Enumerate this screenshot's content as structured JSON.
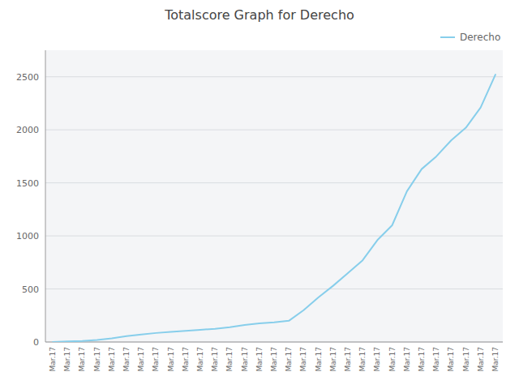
{
  "chart_data": {
    "type": "line",
    "title": "Totalscore Graph for Derecho",
    "categories": [
      "Mar.17",
      "Mar.17",
      "Mar.17",
      "Mar.17",
      "Mar.17",
      "Mar.17",
      "Mar.17",
      "Mar.17",
      "Mar.17",
      "Mar.17",
      "Mar.17",
      "Mar.17",
      "Mar.17",
      "Mar.17",
      "Mar.17",
      "Mar.17",
      "Mar.17",
      "Mar.17",
      "Mar.17",
      "Mar.17",
      "Mar.17",
      "Mar.17",
      "Mar.17",
      "Mar.17",
      "Mar.17",
      "Mar.17",
      "Mar.17",
      "Mar.17",
      "Mar.17",
      "Mar.17",
      "Mar.17"
    ],
    "series": [
      {
        "name": "Derecho",
        "color": "#87CEEB",
        "values": [
          0,
          5,
          10,
          20,
          35,
          55,
          70,
          85,
          95,
          105,
          115,
          125,
          140,
          160,
          175,
          185,
          200,
          300,
          420,
          530,
          650,
          770,
          960,
          1100,
          1420,
          1630,
          1750,
          1900,
          2020,
          2210,
          2520
        ]
      }
    ],
    "ylim": [
      0,
      2750
    ],
    "yticks": [
      0,
      500,
      1000,
      1500,
      2000,
      2500
    ],
    "grid": true,
    "legend": "top-right"
  }
}
